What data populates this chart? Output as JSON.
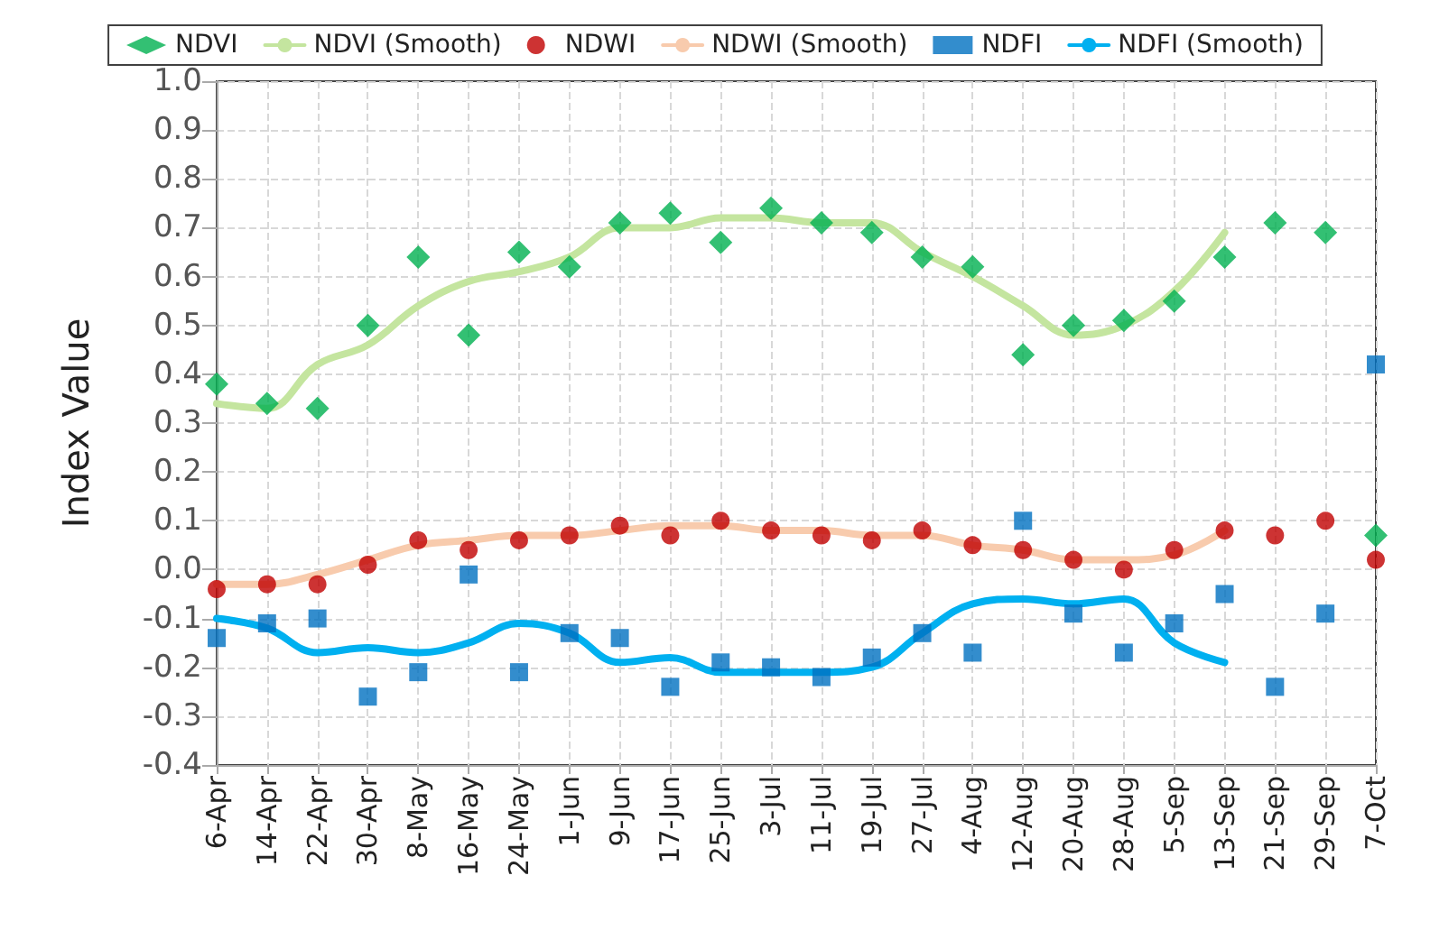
{
  "chart_data": {
    "type": "line",
    "categories": [
      "6-Apr",
      "14-Apr",
      "22-Apr",
      "30-Apr",
      "8-May",
      "16-May",
      "24-May",
      "1-Jun",
      "9-Jun",
      "17-Jun",
      "25-Jun",
      "3-Jul",
      "11-Jul",
      "19-Jul",
      "27-Jul",
      "4-Aug",
      "12-Aug",
      "20-Aug",
      "28-Aug",
      "5-Sep",
      "13-Sep",
      "21-Sep",
      "29-Sep",
      "7-Oct"
    ],
    "ylabel": "Index Value",
    "ylim": [
      -0.4,
      1.0
    ],
    "yticks": [
      {
        "value": -0.4,
        "label": "-0.4"
      },
      {
        "value": -0.3,
        "label": "-0.3"
      },
      {
        "value": -0.2,
        "label": "-0.2"
      },
      {
        "value": -0.1,
        "label": "-0.1"
      },
      {
        "value": 0,
        "label": "0.0"
      },
      {
        "value": 0.1,
        "label": "0.1"
      },
      {
        "value": 0.2,
        "label": "0.2"
      },
      {
        "value": 0.3,
        "label": "0.3"
      },
      {
        "value": 0.4,
        "label": "0.4"
      },
      {
        "value": 0.5,
        "label": "0.5"
      },
      {
        "value": 0.6,
        "label": "0.6"
      },
      {
        "value": 0.7,
        "label": "0.7"
      },
      {
        "value": 0.8,
        "label": "0.8"
      },
      {
        "value": 0.9,
        "label": "0.9"
      },
      {
        "value": 1,
        "label": "1.0"
      }
    ],
    "grid": true,
    "legend": "top",
    "series": [
      {
        "name": "NDVI",
        "type": "scatter",
        "marker": "diamond",
        "color": "#00b050",
        "values": [
          0.38,
          0.34,
          0.33,
          0.5,
          0.64,
          0.48,
          0.65,
          0.62,
          0.71,
          0.73,
          0.67,
          0.74,
          0.71,
          0.69,
          0.64,
          0.62,
          0.44,
          0.5,
          0.51,
          0.55,
          0.64,
          0.71,
          0.69,
          0.07
        ]
      },
      {
        "name": "NDVI (Smooth)",
        "marker": "none",
        "color": "#c4e59f",
        "values": [
          0.34,
          0.33,
          0.42,
          0.46,
          0.54,
          0.59,
          0.61,
          0.64,
          0.7,
          0.7,
          0.72,
          0.72,
          0.71,
          0.71,
          0.65,
          0.6,
          0.54,
          0.48,
          0.5,
          0.57,
          0.69,
          null,
          null,
          null
        ]
      },
      {
        "name": "NDWI",
        "type": "scatter",
        "marker": "circle",
        "color": "#c00000",
        "values": [
          -0.04,
          -0.03,
          -0.03,
          0.01,
          0.06,
          0.04,
          0.06,
          0.07,
          0.09,
          0.07,
          0.1,
          0.08,
          0.07,
          0.06,
          0.08,
          0.05,
          0.04,
          0.02,
          0.0,
          0.04,
          0.08,
          0.07,
          0.1,
          0.02
        ]
      },
      {
        "name": "NDWI (Smooth)",
        "marker": "none",
        "color": "#f8cbad",
        "values": [
          -0.03,
          -0.03,
          -0.01,
          0.02,
          0.05,
          0.06,
          0.07,
          0.07,
          0.08,
          0.09,
          0.09,
          0.08,
          0.08,
          0.07,
          0.07,
          0.05,
          0.04,
          0.02,
          0.02,
          0.03,
          0.08,
          null,
          null,
          null
        ]
      },
      {
        "name": "NDFI",
        "type": "scatter",
        "marker": "square",
        "color": "#0070c0",
        "values": [
          -0.14,
          -0.11,
          -0.1,
          -0.26,
          -0.21,
          -0.01,
          -0.21,
          -0.13,
          -0.14,
          -0.24,
          -0.19,
          -0.2,
          -0.22,
          -0.18,
          -0.13,
          -0.17,
          0.1,
          -0.09,
          -0.17,
          -0.11,
          -0.05,
          -0.24,
          -0.09,
          0.42
        ]
      },
      {
        "name": "NDFI (Smooth)",
        "marker": "none",
        "color": "#00b0f0",
        "values": [
          -0.1,
          -0.12,
          -0.17,
          -0.16,
          -0.17,
          -0.15,
          -0.11,
          -0.13,
          -0.19,
          -0.18,
          -0.21,
          -0.21,
          -0.21,
          -0.2,
          -0.13,
          -0.07,
          -0.06,
          -0.07,
          -0.06,
          -0.15,
          -0.19,
          null,
          null,
          null
        ]
      }
    ]
  }
}
